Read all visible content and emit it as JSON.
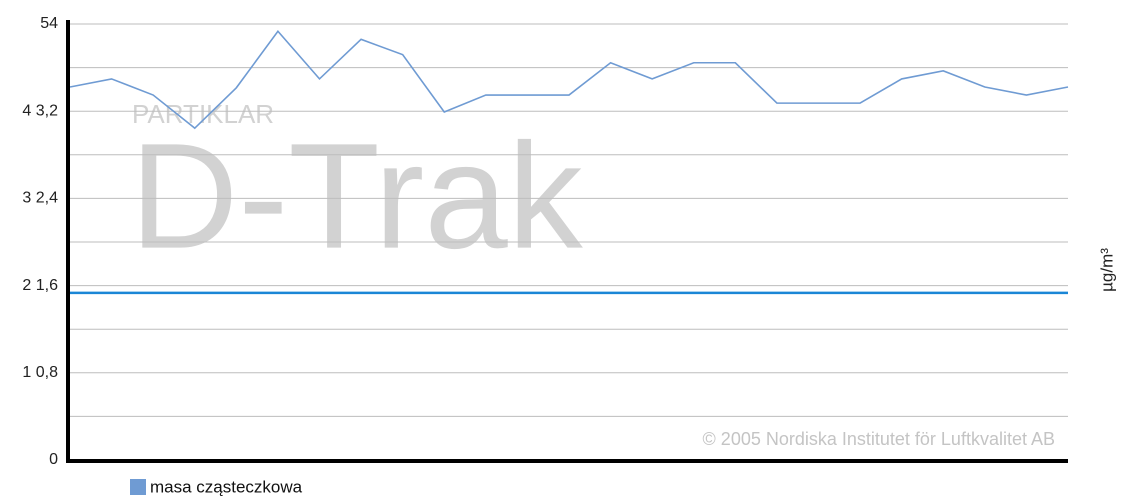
{
  "chart_data": {
    "type": "line",
    "watermark_small": "PARTIKLAR",
    "watermark_large": "D-Trak",
    "credit": "© 2005 Nordiska Institutet för Luftkvalitet AB",
    "y_label": "µg/m³",
    "categories": [
      null,
      null,
      null,
      null,
      null,
      null,
      null,
      null,
      null,
      null,
      null,
      null,
      null,
      null,
      null,
      null,
      null,
      null,
      null,
      null,
      null,
      null,
      null,
      null,
      null
    ],
    "series": [
      {
        "name": "masa cząsteczkowa",
        "color": "#6f9bd3",
        "values": [
          46.2,
          47.2,
          45.2,
          41.1,
          46.1,
          53.1,
          47.2,
          52.1,
          50.2,
          43.1,
          45.2,
          45.2,
          45.2,
          49.2,
          47.2,
          49.2,
          49.2,
          44.2,
          44.2,
          44.2,
          47.2,
          48.2,
          46.2,
          45.2,
          46.2
        ]
      }
    ],
    "threshold": {
      "value": 20.7,
      "color": "#1a86d6"
    },
    "ylim": [
      0,
      54
    ],
    "yticks": [
      0,
      {
        "value": 10.8,
        "label": "1 0,8"
      },
      {
        "value": 21.6,
        "label": "2 1,6"
      },
      {
        "value": 32.4,
        "label": "3 2,4"
      },
      {
        "value": 43.2,
        "label": "4 3,2"
      },
      54
    ],
    "minor_yticks": [
      5.4,
      16.2,
      27,
      37.8,
      48.6
    ],
    "grid": true
  }
}
